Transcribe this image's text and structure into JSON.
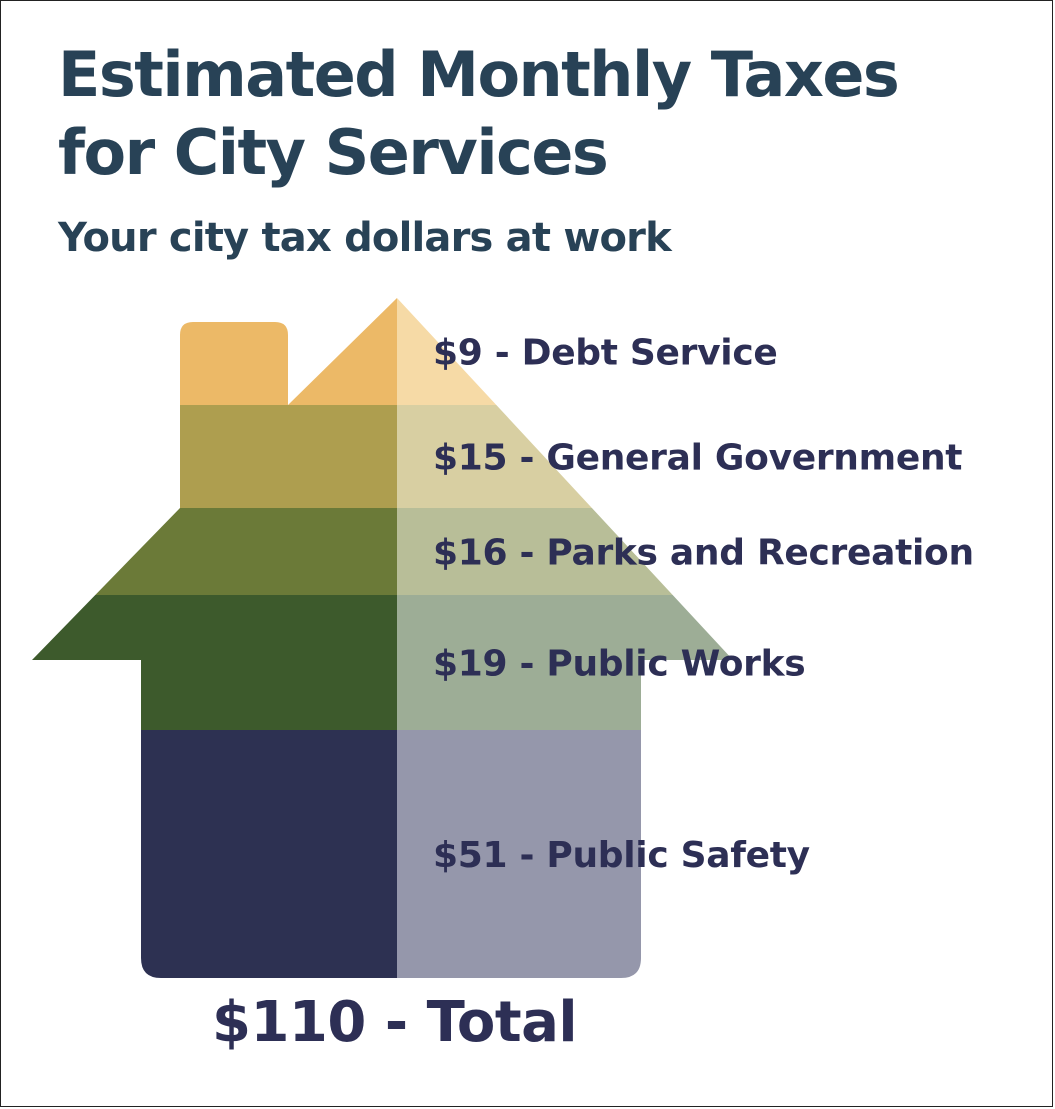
{
  "chart_data": {
    "type": "bar",
    "title_lines": [
      "Estimated Monthly Taxes",
      "for City Services"
    ],
    "subtitle": "Your city tax dollars at work",
    "series": [
      {
        "value": 9,
        "label": "$9 - Debt Service",
        "color": "#ecb967",
        "light_color": "#f6daa6"
      },
      {
        "value": 15,
        "label": "$15 - General Government",
        "color": "#ae9e4f",
        "light_color": "#d8cfa2"
      },
      {
        "value": 16,
        "label": "$16 - Parks and Recreation",
        "color": "#6b7a38",
        "light_color": "#b8be98"
      },
      {
        "value": 19,
        "label": "$19 - Public Works",
        "color": "#3d5a2c",
        "light_color": "#9dad96"
      },
      {
        "value": 51,
        "label": "$51 - Public Safety",
        "color": "#2d3152",
        "light_color": "#9597ab"
      }
    ],
    "total": {
      "value": 110,
      "label": "$110 - Total"
    }
  }
}
